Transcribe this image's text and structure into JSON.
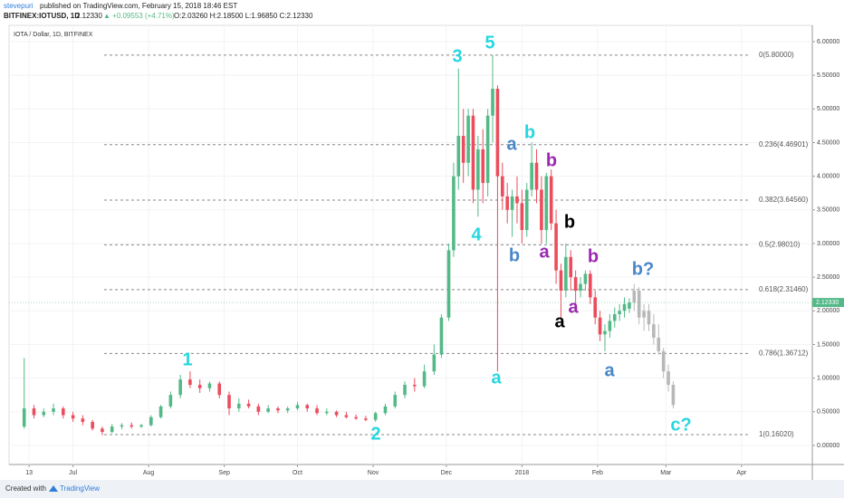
{
  "header": {
    "publisher": "stevepuri",
    "published": "published on TradingView.com, February 15, 2018 18:46 EST",
    "symbol": "BITFINEX:IOTUSD, 1D",
    "price": "2.12330",
    "change": "▲ +0.09553 (+4.71%)",
    "ohlc": "O:2.03260 H:2.18500 L:1.96850 C:2.12330"
  },
  "footer": {
    "created": "Created with",
    "brand": "TradingView"
  },
  "chart_data": {
    "type": "candlestick",
    "title": "IOTA / Dollar, 1D, BITFINEX",
    "xlim": [
      -8.2,
      321
    ],
    "ylim": [
      -0.27,
      6.215
    ],
    "grid": true,
    "xticks": [
      {
        "value": 0,
        "label": "13"
      },
      {
        "value": 18,
        "label": "Jul"
      },
      {
        "value": 49,
        "label": "Aug"
      },
      {
        "value": 80,
        "label": "Sep"
      },
      {
        "value": 110,
        "label": "Oct"
      },
      {
        "value": 141,
        "label": "Nov"
      },
      {
        "value": 171,
        "label": "Dec"
      },
      {
        "value": 202,
        "label": "2018"
      },
      {
        "value": 233,
        "label": "Feb"
      },
      {
        "value": 261,
        "label": "Mar"
      },
      {
        "value": 292,
        "label": "Apr"
      }
    ],
    "yticks": [
      {
        "value": 0,
        "label": "0.00000"
      },
      {
        "value": 0.5,
        "label": "0.50000"
      },
      {
        "value": 1,
        "label": "1.00000"
      },
      {
        "value": 1.5,
        "label": "1.50000"
      },
      {
        "value": 2,
        "label": "2.00000"
      },
      {
        "value": 2.5,
        "label": "2.50000"
      },
      {
        "value": 3,
        "label": "3.00000"
      },
      {
        "value": 3.5,
        "label": "3.50000"
      },
      {
        "value": 4,
        "label": "4.00000"
      },
      {
        "value": 4.5,
        "label": "4.50000"
      },
      {
        "value": 5,
        "label": "5.00000"
      },
      {
        "value": 5.5,
        "label": "5.50000"
      },
      {
        "value": 6,
        "label": "6.00000"
      }
    ],
    "up_color": "#53b987",
    "down_color": "#eb4d5c",
    "series": [
      {
        "color": null,
        "x": [
          -2,
          2,
          6,
          10,
          14,
          18,
          22,
          26,
          30,
          34,
          38,
          42,
          46,
          50,
          54,
          58,
          62,
          66,
          70,
          74,
          78,
          82,
          86,
          90,
          94,
          98,
          102,
          106,
          110,
          114,
          118,
          122,
          126,
          130,
          134,
          138,
          142,
          146,
          150,
          154,
          158,
          162,
          166,
          169,
          172,
          174,
          176,
          178,
          180,
          182,
          184,
          186,
          188,
          190,
          192,
          194,
          196,
          198,
          200,
          202,
          204,
          206,
          208,
          210,
          212,
          214,
          216,
          218,
          220,
          222,
          224,
          226,
          228,
          230,
          232,
          234,
          236,
          238,
          240,
          242,
          244,
          246
        ],
        "ohlc": [
          [
            0.28,
            1.3,
            0.25,
            0.55
          ],
          [
            0.55,
            0.6,
            0.4,
            0.45
          ],
          [
            0.45,
            0.55,
            0.42,
            0.5
          ],
          [
            0.5,
            0.62,
            0.45,
            0.55
          ],
          [
            0.55,
            0.58,
            0.4,
            0.45
          ],
          [
            0.45,
            0.5,
            0.35,
            0.4
          ],
          [
            0.4,
            0.45,
            0.3,
            0.35
          ],
          [
            0.35,
            0.38,
            0.22,
            0.25
          ],
          [
            0.25,
            0.28,
            0.15,
            0.2
          ],
          [
            0.2,
            0.32,
            0.18,
            0.28
          ],
          [
            0.28,
            0.33,
            0.24,
            0.3
          ],
          [
            0.3,
            0.34,
            0.25,
            0.28
          ],
          [
            0.28,
            0.32,
            0.26,
            0.3
          ],
          [
            0.3,
            0.45,
            0.28,
            0.42
          ],
          [
            0.42,
            0.6,
            0.4,
            0.58
          ],
          [
            0.58,
            0.8,
            0.55,
            0.75
          ],
          [
            0.75,
            1.05,
            0.7,
            0.98
          ],
          [
            0.98,
            1.1,
            0.85,
            0.9
          ],
          [
            0.9,
            0.98,
            0.78,
            0.85
          ],
          [
            0.85,
            0.95,
            0.8,
            0.92
          ],
          [
            0.92,
            0.95,
            0.7,
            0.75
          ],
          [
            0.75,
            0.8,
            0.45,
            0.55
          ],
          [
            0.55,
            0.7,
            0.5,
            0.62
          ],
          [
            0.62,
            0.68,
            0.55,
            0.58
          ],
          [
            0.58,
            0.62,
            0.45,
            0.5
          ],
          [
            0.5,
            0.6,
            0.48,
            0.55
          ],
          [
            0.55,
            0.58,
            0.48,
            0.52
          ],
          [
            0.52,
            0.58,
            0.48,
            0.55
          ],
          [
            0.55,
            0.65,
            0.52,
            0.6
          ],
          [
            0.6,
            0.62,
            0.5,
            0.55
          ],
          [
            0.55,
            0.6,
            0.45,
            0.48
          ],
          [
            0.48,
            0.55,
            0.45,
            0.5
          ],
          [
            0.5,
            0.52,
            0.42,
            0.45
          ],
          [
            0.45,
            0.5,
            0.4,
            0.42
          ],
          [
            0.42,
            0.46,
            0.38,
            0.4
          ],
          [
            0.4,
            0.44,
            0.36,
            0.38
          ],
          [
            0.38,
            0.5,
            0.35,
            0.48
          ],
          [
            0.48,
            0.62,
            0.45,
            0.58
          ],
          [
            0.58,
            0.8,
            0.55,
            0.75
          ],
          [
            0.75,
            0.95,
            0.7,
            0.9
          ],
          [
            0.9,
            1.0,
            0.8,
            0.88
          ],
          [
            0.88,
            1.2,
            0.85,
            1.1
          ],
          [
            1.1,
            1.5,
            1.05,
            1.35
          ],
          [
            1.35,
            1.95,
            1.3,
            1.9
          ],
          [
            1.9,
            3.0,
            1.85,
            2.9
          ],
          [
            2.9,
            4.2,
            2.8,
            4.0
          ],
          [
            4.0,
            5.6,
            3.8,
            4.6
          ],
          [
            4.6,
            5.0,
            3.9,
            4.2
          ],
          [
            4.2,
            5.0,
            4.0,
            4.9
          ],
          [
            4.9,
            5.0,
            3.6,
            3.8
          ],
          [
            3.8,
            4.6,
            3.4,
            4.4
          ],
          [
            4.4,
            4.7,
            3.6,
            3.9
          ],
          [
            3.9,
            5.0,
            3.7,
            4.9
          ],
          [
            4.9,
            5.8,
            4.5,
            5.3
          ],
          [
            5.3,
            5.35,
            1.1,
            4.0
          ],
          [
            4.0,
            4.2,
            3.5,
            3.7
          ],
          [
            3.7,
            3.9,
            3.3,
            3.5
          ],
          [
            3.5,
            3.8,
            3.1,
            3.7
          ],
          [
            3.7,
            4.0,
            3.3,
            3.6
          ],
          [
            3.6,
            3.8,
            3.0,
            3.2
          ],
          [
            3.2,
            3.9,
            3.1,
            3.8
          ],
          [
            3.8,
            4.5,
            3.7,
            4.2
          ],
          [
            4.2,
            4.4,
            3.6,
            3.8
          ],
          [
            3.8,
            4.0,
            3.0,
            3.2
          ],
          [
            3.2,
            4.05,
            3.0,
            4.0
          ],
          [
            4.0,
            4.1,
            3.2,
            3.3
          ],
          [
            3.3,
            3.5,
            2.4,
            2.6
          ],
          [
            2.6,
            2.7,
            1.9,
            2.3
          ],
          [
            2.3,
            3.0,
            2.2,
            2.8
          ],
          [
            2.8,
            2.9,
            2.3,
            2.5
          ],
          [
            2.5,
            2.6,
            2.1,
            2.3
          ],
          [
            2.3,
            2.5,
            2.2,
            2.4
          ],
          [
            2.4,
            2.6,
            2.3,
            2.55
          ],
          [
            2.55,
            2.6,
            2.1,
            2.2
          ],
          [
            2.2,
            2.3,
            1.8,
            1.9
          ],
          [
            1.9,
            2.0,
            1.55,
            1.65
          ],
          [
            1.65,
            1.8,
            1.4,
            1.7
          ],
          [
            1.7,
            1.95,
            1.6,
            1.85
          ],
          [
            1.85,
            2.05,
            1.75,
            1.95
          ],
          [
            1.95,
            2.1,
            1.85,
            2.0
          ],
          [
            2.0,
            2.2,
            1.9,
            2.1
          ],
          [
            2.0326,
            2.185,
            1.9685,
            2.1233
          ]
        ]
      },
      {
        "color": "#b8b8b8",
        "x": [
          248,
          250,
          252,
          254,
          256,
          258,
          260,
          262,
          264
        ],
        "ohlc": [
          [
            2.12,
            2.4,
            2.0,
            2.3
          ],
          [
            2.3,
            2.35,
            1.8,
            1.9
          ],
          [
            1.9,
            2.1,
            1.7,
            2.0
          ],
          [
            2.0,
            2.1,
            1.7,
            1.8
          ],
          [
            1.8,
            1.95,
            1.5,
            1.6
          ],
          [
            1.6,
            1.8,
            1.35,
            1.4
          ],
          [
            1.4,
            1.45,
            1.0,
            1.1
          ],
          [
            1.1,
            1.2,
            0.8,
            0.9
          ],
          [
            0.9,
            0.95,
            0.55,
            0.6
          ]
        ]
      }
    ],
    "levels": [
      {
        "value": 5.8,
        "label": "0(5.80000)"
      },
      {
        "value": 4.46901,
        "label": "0.236(4.46901)"
      },
      {
        "value": 3.6456,
        "label": "0.382(3.64560)"
      },
      {
        "value": 2.9801,
        "label": "0.5(2.98010)"
      },
      {
        "value": 2.3146,
        "label": "0.618(2.31460)"
      },
      {
        "value": 1.36712,
        "label": "0.786(1.36712)"
      },
      {
        "value": 0.1602,
        "label": "1(0.16020)"
      }
    ],
    "last_price": {
      "value": 2.1233,
      "label": "2.12330"
    },
    "annotations": [
      {
        "label": "1",
        "color": "#26d7e0"
      },
      {
        "label": "2",
        "color": "#26d7e0"
      },
      {
        "label": "3",
        "color": "#26d7e0"
      },
      {
        "label": "4",
        "color": "#26d7e0"
      },
      {
        "label": "5",
        "color": "#26d7e0"
      },
      {
        "label": "a",
        "color": "#26d7e0"
      },
      {
        "label": "a",
        "color": "#4a86c8"
      },
      {
        "label": "b",
        "color": "#26d7e0"
      },
      {
        "label": "b",
        "color": "#4a86c8"
      },
      {
        "label": "b",
        "color": "#9c27b0"
      },
      {
        "label": "a",
        "color": "#9c27b0"
      },
      {
        "label": "b",
        "color": "#000000"
      },
      {
        "label": "a",
        "color": "#000000"
      },
      {
        "label": "a",
        "color": "#9c27b0"
      },
      {
        "label": "b",
        "color": "#9c27b0"
      },
      {
        "label": "a",
        "color": "#4a86c8"
      },
      {
        "label": "b?",
        "color": "#4a86c8"
      },
      {
        "label": "c?",
        "color": "#26d7e0"
      }
    ]
  }
}
